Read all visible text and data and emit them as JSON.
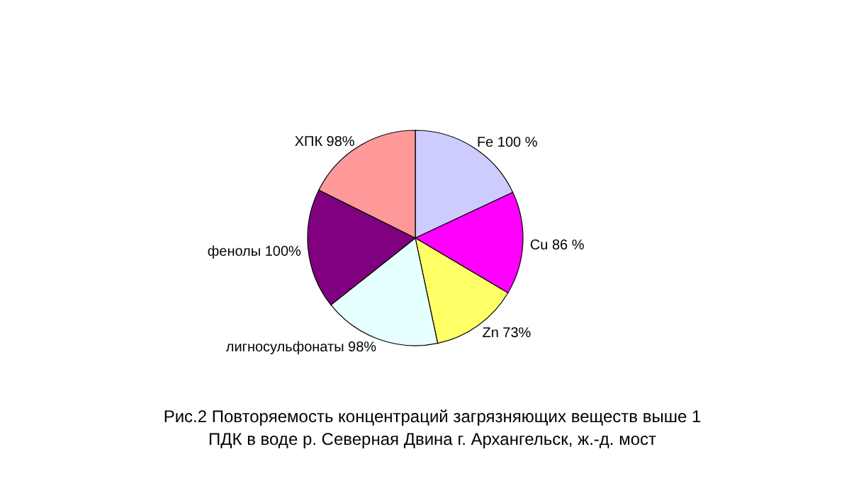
{
  "chart_data": {
    "type": "pie",
    "title": "Рис.2 Повторяемость концентраций загрязняющих веществ выше 1 ПДК в воде р. Северная Двина г. Архангельск, ж.-д. мост",
    "categories": [
      "Fe",
      "Cu",
      "Zn",
      "лигносульфонаты",
      "фенолы",
      "ХПК"
    ],
    "values": [
      100,
      86,
      73,
      98,
      100,
      98
    ],
    "value_labels": [
      "100 %",
      "86 %",
      "73%",
      "98%",
      "100%",
      "98%"
    ],
    "colors": [
      "#ccccff",
      "#ff00ff",
      "#ffff66",
      "#e6ffff",
      "#800080",
      "#ff9999"
    ],
    "legend": false
  }
}
